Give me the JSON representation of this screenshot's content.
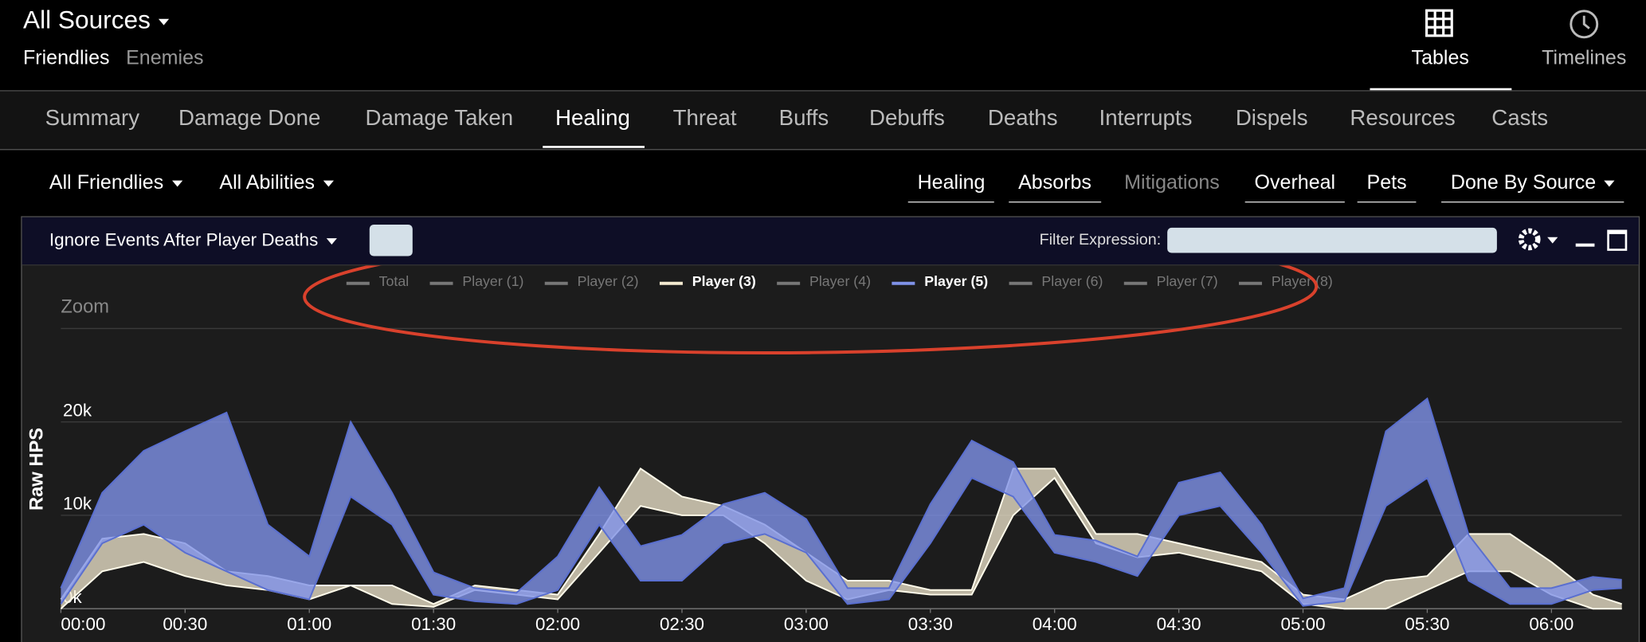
{
  "header": {
    "source": "All Sources",
    "friendlies": "Friendlies",
    "enemies": "Enemies",
    "tables": "Tables",
    "timelines": "Timelines"
  },
  "tabs": [
    "Summary",
    "Damage Done",
    "Damage Taken",
    "Healing",
    "Threat",
    "Buffs",
    "Debuffs",
    "Deaths",
    "Interrupts",
    "Dispels",
    "Resources",
    "Casts"
  ],
  "filters": {
    "actors": "All Friendlies",
    "abilities": "All Abilities",
    "toggles": [
      "Healing",
      "Absorbs",
      "Mitigations",
      "Overheal",
      "Pets"
    ],
    "view": "Done By Source"
  },
  "panel": {
    "ignore": "Ignore Events After Player Deaths",
    "filter_label": "Filter Expression:",
    "zoom": "Zoom"
  },
  "chart_data": {
    "type": "range-area",
    "y_label": "Raw HPS",
    "x": [
      0,
      10,
      20,
      30,
      40,
      50,
      60,
      70,
      80,
      90,
      100,
      110,
      120,
      130,
      140,
      150,
      160,
      170,
      180,
      190,
      200,
      210,
      220,
      230,
      240,
      250,
      260,
      270,
      280,
      290,
      300,
      310,
      320,
      330,
      340,
      350,
      360,
      370,
      377
    ],
    "xlim": [
      0,
      377
    ],
    "xticks": [
      {
        "value": 0,
        "label": "00:00"
      },
      {
        "value": 30,
        "label": "00:30"
      },
      {
        "value": 60,
        "label": "01:00"
      },
      {
        "value": 90,
        "label": "01:30"
      },
      {
        "value": 120,
        "label": "02:00"
      },
      {
        "value": 150,
        "label": "02:30"
      },
      {
        "value": 180,
        "label": "03:00"
      },
      {
        "value": 210,
        "label": "03:30"
      },
      {
        "value": 240,
        "label": "04:00"
      },
      {
        "value": 270,
        "label": "04:30"
      },
      {
        "value": 300,
        "label": "05:00"
      },
      {
        "value": 330,
        "label": "05:30"
      },
      {
        "value": 360,
        "label": "06:00"
      }
    ],
    "ylim": [
      0,
      30000
    ],
    "yticks": [
      {
        "value": 0,
        "label": "0k"
      },
      {
        "value": 10000,
        "label": "10k"
      },
      {
        "value": 20000,
        "label": "20k"
      }
    ],
    "grid": true,
    "series": [
      {
        "name": "Total",
        "color": "#777777",
        "visible": false
      },
      {
        "name": "Player (1)",
        "color": "#777777",
        "visible": false
      },
      {
        "name": "Player (2)",
        "color": "#777777",
        "visible": false
      },
      {
        "name": "Player (3)",
        "color": "#f3ead0",
        "visible": true,
        "high": [
          1000,
          7500,
          8000,
          7000,
          4000,
          3500,
          2500,
          2500,
          2500,
          500,
          2500,
          2000,
          1500,
          8000,
          15000,
          12000,
          11000,
          9000,
          6000,
          3000,
          3000,
          2000,
          2000,
          15000,
          15000,
          8000,
          8000,
          7000,
          6000,
          5000,
          1500,
          1000,
          3000,
          3500,
          8000,
          8000,
          5000,
          1500,
          500
        ],
        "low": [
          0,
          4000,
          5000,
          3500,
          2500,
          2000,
          1000,
          2500,
          500,
          200,
          2000,
          1500,
          1000,
          6000,
          11000,
          10000,
          10000,
          7000,
          3000,
          1000,
          2000,
          1500,
          1500,
          10000,
          14000,
          7000,
          5500,
          6000,
          5000,
          4000,
          500,
          0,
          0,
          2000,
          4000,
          4000,
          1500,
          0,
          0
        ]
      },
      {
        "name": "Player (4)",
        "color": "#777777",
        "visible": false
      },
      {
        "name": "Player (5)",
        "color": "#7f92e8",
        "visible": true,
        "high": [
          2200,
          12400,
          16900,
          19000,
          21000,
          9000,
          5600,
          20000,
          12400,
          3900,
          2200,
          1700,
          5600,
          13000,
          6700,
          7900,
          11200,
          12400,
          9600,
          2200,
          2200,
          11200,
          18000,
          15700,
          7900,
          7300,
          5600,
          13500,
          14600,
          9000,
          1100,
          2200,
          19000,
          22500,
          7900,
          2200,
          2200,
          3400,
          3100
        ],
        "low": [
          500,
          7000,
          9000,
          6000,
          4000,
          2000,
          1000,
          12000,
          9000,
          1500,
          800,
          500,
          2000,
          9000,
          3000,
          3000,
          7000,
          8000,
          6000,
          500,
          1000,
          7000,
          14000,
          12000,
          6000,
          5000,
          3500,
          10000,
          11000,
          6000,
          300,
          800,
          11000,
          14000,
          3000,
          500,
          500,
          2000,
          2200
        ]
      },
      {
        "name": "Player (6)",
        "color": "#777777",
        "visible": false
      },
      {
        "name": "Player (7)",
        "color": "#777777",
        "visible": false
      },
      {
        "name": "Player (8)",
        "color": "#777777",
        "visible": false
      }
    ]
  }
}
